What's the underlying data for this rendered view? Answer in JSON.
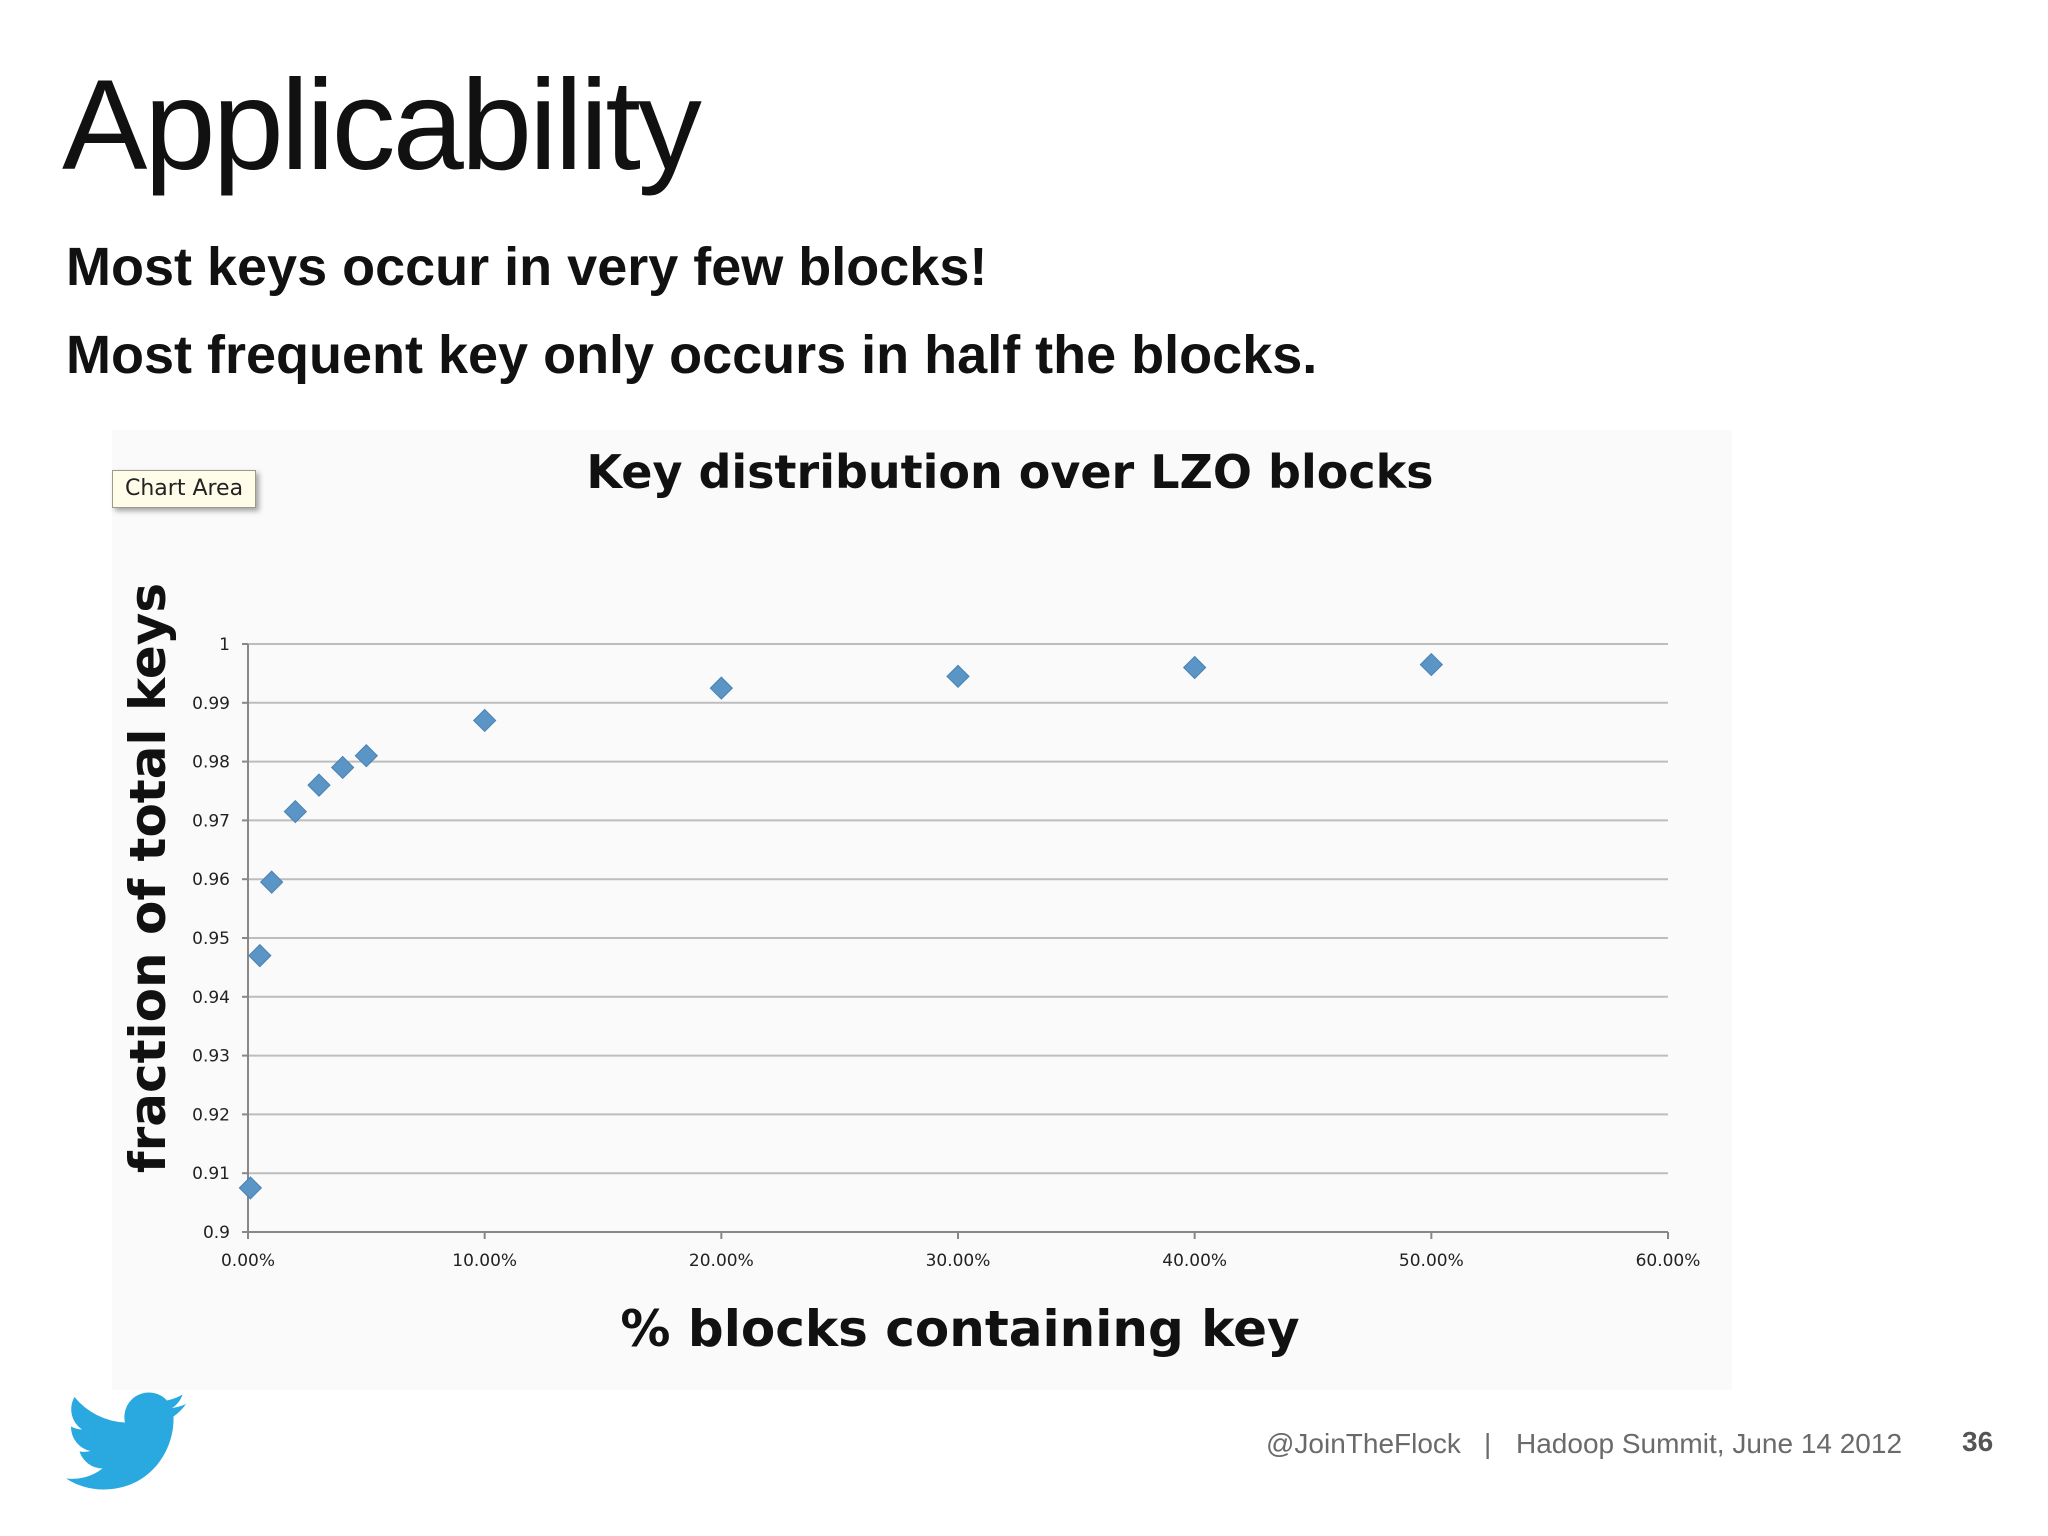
{
  "slide": {
    "title": "Applicability",
    "bullets": [
      "Most keys occur in very few blocks!",
      "Most frequent key only occurs in half the blocks."
    ],
    "tooltip": "Chart Area",
    "footer": {
      "handle": "@JoinTheFlock",
      "separator": "|",
      "event": "Hadoop Summit, June 14 2012",
      "page_number": "36"
    },
    "logo_icon": "twitter-bird-icon",
    "colors": {
      "marker": "#5b95c6",
      "twitter_blue": "#2aa9e0",
      "gridline": "#bdbdbd"
    }
  },
  "chart_data": {
    "type": "scatter",
    "title": "Key distribution over LZO blocks",
    "xlabel": "% blocks containing key",
    "ylabel": "fraction of total keys",
    "xlim": [
      0,
      0.6
    ],
    "ylim": [
      0.9,
      1
    ],
    "x_ticks": [
      0,
      0.1,
      0.2,
      0.3,
      0.4,
      0.5,
      0.6
    ],
    "x_tick_labels": [
      "0.00%",
      "10.00%",
      "20.00%",
      "30.00%",
      "40.00%",
      "50.00%",
      "60.00%"
    ],
    "y_ticks": [
      0.9,
      0.91,
      0.92,
      0.93,
      0.94,
      0.95,
      0.96,
      0.97,
      0.98,
      0.99,
      1
    ],
    "y_tick_labels": [
      "0.9",
      "0.91",
      "0.92",
      "0.93",
      "0.94",
      "0.95",
      "0.96",
      "0.97",
      "0.98",
      "0.99",
      "1"
    ],
    "grid": true,
    "legend": "none",
    "marker": "diamond",
    "points": [
      {
        "x": 0.001,
        "y": 0.9075
      },
      {
        "x": 0.005,
        "y": 0.947
      },
      {
        "x": 0.01,
        "y": 0.9595
      },
      {
        "x": 0.02,
        "y": 0.9715
      },
      {
        "x": 0.03,
        "y": 0.976
      },
      {
        "x": 0.04,
        "y": 0.979
      },
      {
        "x": 0.05,
        "y": 0.981
      },
      {
        "x": 0.1,
        "y": 0.987
      },
      {
        "x": 0.2,
        "y": 0.9925
      },
      {
        "x": 0.3,
        "y": 0.9945
      },
      {
        "x": 0.4,
        "y": 0.996
      },
      {
        "x": 0.5,
        "y": 0.9965
      }
    ]
  }
}
